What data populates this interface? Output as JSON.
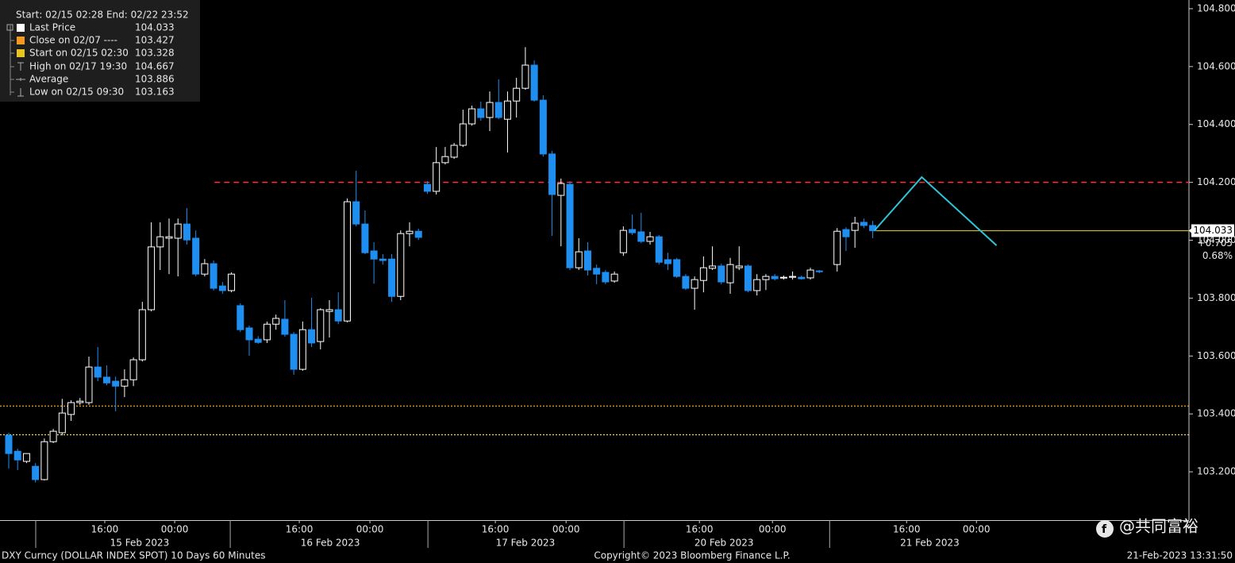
{
  "chart_data": {
    "type": "candlestick",
    "legend_title": "Start: 02/15 02:28 End: 02/22 23:52",
    "legend": [
      {
        "label": "Last Price",
        "value": 104.033,
        "color": "#ffffff",
        "line_color": "#c9b04a",
        "line_style": "solid"
      },
      {
        "label": "Close on 02/07 ----",
        "value": 103.427,
        "color": "#f39a1e",
        "line_color": "#f39a1e",
        "line_style": "dotted"
      },
      {
        "label": "Start on 02/15 02:30",
        "value": 103.328,
        "color": "#e8c41c",
        "line_color": "#f2d36a",
        "line_style": "dotted"
      },
      {
        "label": "High on 02/17 19:30",
        "value": 104.667
      },
      {
        "label": "Average",
        "value": 103.886
      },
      {
        "label": "Low on 02/15 09:30",
        "value": 103.163
      }
    ],
    "up_color": "#ffffff",
    "down_color": "#1e8ff0",
    "categories": [
      null,
      null,
      null,
      null,
      null,
      null,
      null,
      null,
      null,
      null,
      null,
      null,
      null,
      null,
      null,
      null,
      null,
      null,
      null,
      null,
      null,
      null,
      null,
      null,
      null,
      null,
      null,
      null,
      null,
      null,
      null,
      null,
      null,
      null,
      null,
      null,
      null,
      null,
      null,
      null,
      null,
      null,
      null,
      null,
      null,
      null,
      null,
      null,
      null,
      null,
      null,
      null,
      null,
      null,
      null,
      null,
      null,
      null,
      null,
      null,
      null,
      null,
      null,
      null,
      null,
      null,
      null,
      null,
      null,
      null,
      null,
      null,
      null,
      null,
      null,
      null,
      null,
      null,
      null,
      null,
      null,
      null,
      null,
      null,
      null,
      null,
      null,
      null,
      null,
      null,
      null,
      null,
      null,
      null,
      null,
      null,
      null,
      null
    ],
    "open": [
      103.326,
      103.271,
      103.236,
      103.219,
      103.173,
      103.304,
      103.335,
      103.398,
      103.439,
      103.439,
      103.562,
      103.527,
      103.513,
      103.496,
      103.518,
      103.587,
      103.76,
      103.977,
      104.007,
      104.007,
      104.056,
      104.007,
      103.883,
      103.919,
      103.842,
      103.826,
      103.774,
      103.697,
      103.658,
      103.656,
      103.71,
      103.727,
      103.675,
      103.554,
      103.691,
      103.65,
      103.754,
      103.76,
      103.721,
      104.133,
      104.056,
      103.963,
      103.935,
      103.935,
      103.806,
      104.023,
      104.031,
      104.193,
      104.169,
      104.268,
      104.287,
      104.328,
      104.402,
      104.454,
      104.424,
      104.476,
      104.418,
      104.481,
      104.525,
      104.605,
      104.484,
      104.298,
      104.155,
      104.193,
      103.905,
      103.963,
      103.903,
      103.889,
      103.859,
      103.957,
      104.037,
      104.029,
      103.996,
      104.012,
      103.933,
      103.933,
      103.875,
      103.834,
      103.861,
      103.903,
      103.911,
      103.853,
      103.905,
      103.911,
      103.826,
      103.864,
      103.875,
      103.87,
      103.872,
      103.872,
      103.87,
      103.894,
      null,
      103.916,
      104.037,
      104.034,
      104.062,
      104.051
    ],
    "high": [
      103.335,
      103.28,
      103.263,
      103.23,
      103.315,
      103.348,
      103.452,
      103.447,
      103.455,
      103.598,
      103.631,
      103.568,
      103.529,
      103.554,
      103.595,
      103.787,
      104.062,
      104.062,
      104.075,
      104.075,
      104.111,
      104.034,
      103.935,
      103.93,
      103.856,
      103.889,
      103.782,
      103.705,
      103.669,
      103.719,
      103.743,
      103.793,
      103.683,
      103.719,
      103.801,
      103.765,
      103.793,
      103.82,
      104.144,
      104.24,
      104.103,
      103.993,
      103.952,
      103.952,
      104.034,
      104.062,
      104.04,
      104.204,
      104.322,
      104.322,
      104.336,
      104.451,
      104.465,
      104.479,
      104.514,
      104.556,
      104.514,
      104.561,
      104.667,
      104.621,
      104.501,
      104.309,
      104.213,
      104.204,
      104.007,
      103.993,
      103.916,
      103.897,
      103.892,
      104.048,
      104.089,
      104.095,
      104.029,
      104.018,
      103.957,
      103.939,
      103.883,
      103.875,
      103.944,
      103.979,
      103.919,
      103.939,
      103.979,
      103.916,
      103.883,
      103.883,
      103.883,
      103.878,
      103.892,
      103.878,
      103.905,
      103.897,
      null,
      104.042,
      104.045,
      104.081,
      104.075,
      104.067
    ],
    "low": [
      103.211,
      103.206,
      103.23,
      103.163,
      103.17,
      103.299,
      103.326,
      103.376,
      103.431,
      103.431,
      103.513,
      103.499,
      103.409,
      103.458,
      103.496,
      103.581,
      103.754,
      103.897,
      103.883,
      103.875,
      103.985,
      103.875,
      103.875,
      103.826,
      103.815,
      103.82,
      103.683,
      103.601,
      103.642,
      103.645,
      103.691,
      103.667,
      103.535,
      103.549,
      103.631,
      103.623,
      103.664,
      103.71,
      103.716,
      104.048,
      103.952,
      103.85,
      103.916,
      103.787,
      103.793,
      103.979,
      104.001,
      104.16,
      104.158,
      104.262,
      104.281,
      104.322,
      104.396,
      104.413,
      104.377,
      104.418,
      104.303,
      104.424,
      104.52,
      104.479,
      104.289,
      104.015,
      103.979,
      103.897,
      103.897,
      103.878,
      103.848,
      103.848,
      103.853,
      103.946,
      104.018,
      103.99,
      103.985,
      103.916,
      103.897,
      103.87,
      103.828,
      103.76,
      103.82,
      103.897,
      103.848,
      103.815,
      103.897,
      103.82,
      103.809,
      103.828,
      103.861,
      103.864,
      103.864,
      103.864,
      103.864,
      103.886,
      null,
      103.892,
      103.963,
      103.974,
      104.042,
      104.007
    ],
    "close": [
      103.263,
      103.241,
      103.263,
      103.173,
      103.304,
      103.34,
      103.403,
      103.439,
      103.444,
      103.562,
      103.527,
      103.507,
      103.496,
      103.518,
      103.587,
      103.76,
      103.977,
      104.012,
      104.012,
      104.056,
      104.001,
      103.883,
      103.919,
      103.834,
      103.826,
      103.883,
      103.691,
      103.656,
      103.647,
      103.71,
      103.73,
      103.675,
      103.554,
      103.691,
      103.645,
      103.76,
      103.76,
      103.721,
      104.133,
      104.056,
      103.957,
      103.935,
      103.93,
      103.806,
      104.023,
      104.031,
      104.01,
      104.169,
      104.268,
      104.289,
      104.328,
      104.402,
      104.454,
      104.424,
      104.476,
      104.424,
      104.481,
      104.525,
      104.605,
      104.484,
      104.298,
      104.158,
      104.196,
      103.905,
      103.96,
      103.897,
      103.883,
      103.856,
      103.883,
      104.034,
      104.026,
      103.996,
      104.012,
      103.924,
      103.919,
      103.875,
      103.834,
      103.864,
      103.905,
      103.911,
      103.856,
      103.916,
      103.911,
      103.826,
      103.864,
      103.875,
      103.867,
      103.872,
      103.875,
      103.867,
      103.897,
      103.892,
      null,
      104.031,
      104.012,
      104.059,
      104.051,
      104.033
    ],
    "xlim": [
      -0.98,
      132.5
    ],
    "ylim": [
      103.033,
      104.83
    ],
    "yticks": [
      {
        "value": 103.2,
        "label": "103.200"
      },
      {
        "value": 103.4,
        "label": "103.400"
      },
      {
        "value": 103.6,
        "label": "103.600"
      },
      {
        "value": 103.8,
        "label": "103.800"
      },
      {
        "value": 104.0,
        "label": "104.000"
      },
      {
        "value": 104.2,
        "label": "104.200"
      },
      {
        "value": 104.4,
        "label": "104.400"
      },
      {
        "value": 104.6,
        "label": "104.600"
      },
      {
        "value": 104.8,
        "label": "104.800"
      }
    ],
    "xticks": [
      {
        "value": 10.78,
        "label": "16:00"
      },
      {
        "value": 18.63,
        "label": "00:00"
      },
      {
        "value": 32.62,
        "label": "16:00"
      },
      {
        "value": 40.55,
        "label": "00:00"
      },
      {
        "value": 54.63,
        "label": "16:00"
      },
      {
        "value": 62.57,
        "label": "00:00"
      },
      {
        "value": 77.54,
        "label": "16:00"
      },
      {
        "value": 85.74,
        "label": "00:00"
      },
      {
        "value": 100.8,
        "label": "16:00"
      },
      {
        "value": 108.64,
        "label": "00:00"
      }
    ],
    "date_labels": [
      {
        "value": 14.7,
        "label": "15 Feb 2023"
      },
      {
        "value": 36.1,
        "label": "16 Feb 2023"
      },
      {
        "value": 58.0,
        "label": "17 Feb 2023"
      },
      {
        "value": 80.3,
        "label": "20 Feb 2023"
      },
      {
        "value": 103.4,
        "label": "21 Feb 2023"
      }
    ],
    "day_breaks": [
      3.03,
      24.87,
      47.06,
      69.07,
      92.16
    ],
    "resistance_line": {
      "value": 104.2,
      "x_start": 23.1,
      "color": "#ff2d3c"
    },
    "annotation_path": {
      "x": [
        97.2,
        102.5,
        110.9
      ],
      "y": [
        104.034,
        104.218,
        103.982
      ],
      "color": "#2cc6d6"
    },
    "last_change": {
      "value": 0.705,
      "label": "+0.705"
    },
    "last_change_pct": {
      "value": 0.68,
      "label": "0.68%"
    },
    "footer": {
      "left": "DXY Curncy (DOLLAR INDEX SPOT) 10 Days 60 Minutes",
      "center": "Copyright© 2023 Bloomberg Finance L.P.",
      "right": "21-Feb-2023 13:31:50"
    },
    "watermark": "@共同富裕"
  }
}
